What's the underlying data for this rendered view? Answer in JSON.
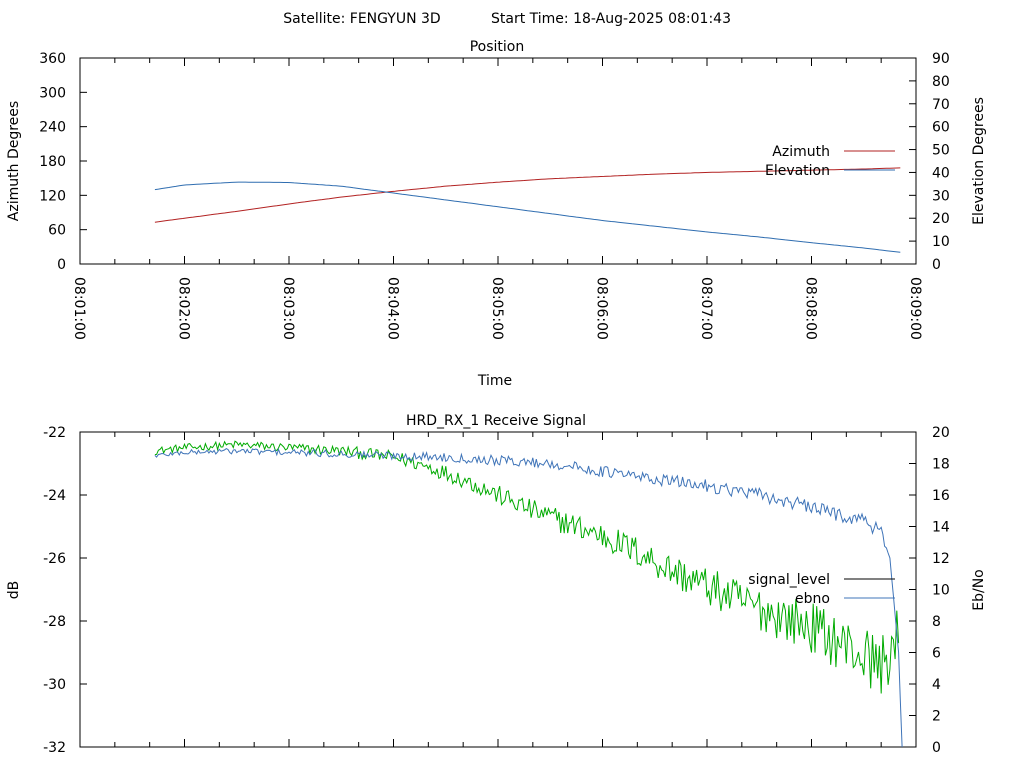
{
  "header": {
    "satellite_label": "Satellite: FENGYUN 3D",
    "start_time_label": "Start Time: 18-Aug-2025 08:01:43"
  },
  "colors": {
    "azimuth": "#b22222",
    "elevation": "#2f6db0",
    "signal_level": "#00aa00",
    "ebno": "#3f74b8",
    "legend_signal_sample": "#000000",
    "axis": "#000000"
  },
  "chart_data": [
    {
      "type": "line",
      "title": "Position",
      "xlabel": "Time",
      "ylabel": "Azimuth Degrees",
      "y2label": "Elevation Degrees",
      "x_ticks": [
        "08:01:00",
        "08:02:00",
        "08:03:00",
        "08:04:00",
        "08:05:00",
        "08:06:00",
        "08:07:00",
        "08:08:00",
        "08:09:00"
      ],
      "xlim": [
        "08:01:00",
        "08:09:00"
      ],
      "ylim": [
        0,
        360
      ],
      "y_ticks": [
        0,
        60,
        120,
        180,
        240,
        300,
        360
      ],
      "y2lim": [
        0,
        90
      ],
      "y2_ticks": [
        0,
        10,
        20,
        30,
        40,
        50,
        60,
        70,
        80,
        90
      ],
      "legend_position": "right",
      "series": [
        {
          "name": "Azimuth",
          "axis": "y1",
          "x": [
            "08:01:43",
            "08:02:00",
            "08:02:30",
            "08:03:00",
            "08:03:30",
            "08:04:00",
            "08:04:30",
            "08:05:00",
            "08:05:30",
            "08:06:00",
            "08:06:30",
            "08:07:00",
            "08:07:30",
            "08:08:00",
            "08:08:30",
            "08:08:52"
          ],
          "y": [
            73,
            80,
            92,
            105,
            117,
            127,
            136,
            143,
            149,
            153,
            157,
            160,
            162,
            164,
            166,
            168
          ]
        },
        {
          "name": "Elevation",
          "axis": "y2",
          "x": [
            "08:01:43",
            "08:02:00",
            "08:02:30",
            "08:03:00",
            "08:03:30",
            "08:04:00",
            "08:04:30",
            "08:05:00",
            "08:05:30",
            "08:06:00",
            "08:06:30",
            "08:07:00",
            "08:07:30",
            "08:08:00",
            "08:08:30",
            "08:08:52"
          ],
          "y": [
            32.5,
            34.5,
            35.8,
            35.6,
            34.0,
            31.0,
            28.0,
            25.0,
            22.0,
            19.0,
            16.5,
            14.0,
            11.8,
            9.3,
            7.0,
            5.0
          ]
        }
      ]
    },
    {
      "type": "line",
      "title": "HRD_RX_1 Receive Signal",
      "xlabel": "",
      "ylabel": "dB",
      "y2label": "Eb/No",
      "xlim": [
        "08:01:00",
        "08:09:00"
      ],
      "ylim": [
        -32,
        -22
      ],
      "y_ticks": [
        -32,
        -30,
        -28,
        -26,
        -24,
        -22
      ],
      "y2lim": [
        0,
        20
      ],
      "y2_ticks": [
        0,
        2,
        4,
        6,
        8,
        10,
        12,
        14,
        16,
        18,
        20
      ],
      "legend_position": "right",
      "series": [
        {
          "name": "signal_level",
          "axis": "y1",
          "x": [
            "08:01:43",
            "08:02:00",
            "08:02:30",
            "08:03:00",
            "08:03:30",
            "08:04:00",
            "08:04:20",
            "08:04:40",
            "08:05:00",
            "08:05:20",
            "08:05:40",
            "08:06:00",
            "08:06:20",
            "08:06:40",
            "08:07:00",
            "08:07:20",
            "08:07:40",
            "08:08:00",
            "08:08:20",
            "08:08:40",
            "08:08:50"
          ],
          "y": [
            -22.6,
            -22.5,
            -22.4,
            -22.5,
            -22.6,
            -22.8,
            -23.1,
            -23.5,
            -24.0,
            -24.5,
            -24.9,
            -25.3,
            -25.8,
            -26.4,
            -26.9,
            -27.4,
            -27.8,
            -28.2,
            -28.8,
            -29.4,
            -28.6
          ]
        },
        {
          "name": "ebno",
          "axis": "y2",
          "x": [
            "08:01:43",
            "08:02:00",
            "08:02:30",
            "08:03:00",
            "08:03:30",
            "08:04:00",
            "08:04:30",
            "08:05:00",
            "08:05:30",
            "08:06:00",
            "08:06:30",
            "08:07:00",
            "08:07:30",
            "08:08:00",
            "08:08:30",
            "08:08:40",
            "08:08:45",
            "08:08:50",
            "08:08:52"
          ],
          "y": [
            18.5,
            18.7,
            18.8,
            18.7,
            18.6,
            18.5,
            18.4,
            18.2,
            18.0,
            17.5,
            17.0,
            16.6,
            16.0,
            15.2,
            14.4,
            13.6,
            12.0,
            6.0,
            0.0
          ]
        }
      ]
    }
  ]
}
